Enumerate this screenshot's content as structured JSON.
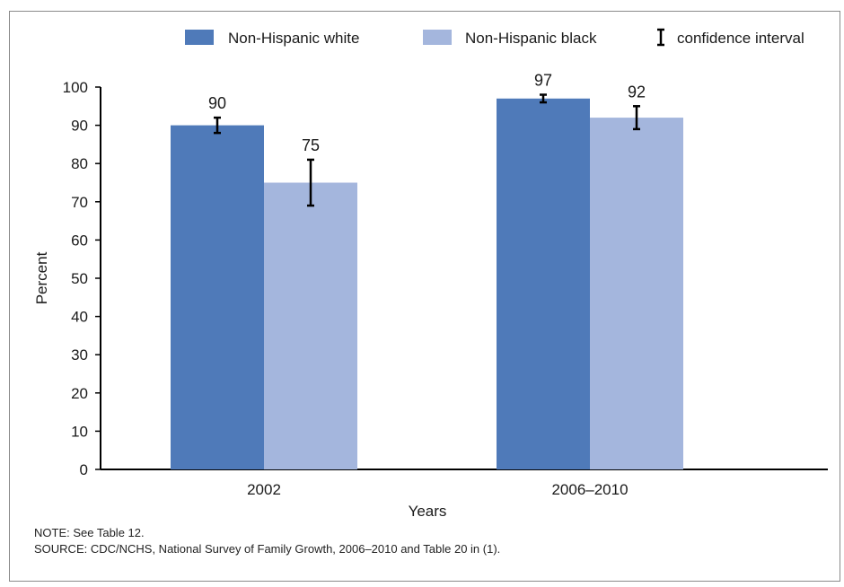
{
  "chart_data": {
    "type": "bar",
    "categories": [
      "2002",
      "2006–2010"
    ],
    "series": [
      {
        "name": "Non-Hispanic white",
        "values": [
          90,
          97
        ],
        "ci_low": [
          88,
          96
        ],
        "ci_high": [
          92,
          98
        ],
        "color": "#4f7ab9"
      },
      {
        "name": "Non-Hispanic black",
        "values": [
          75,
          92
        ],
        "ci_low": [
          69,
          89
        ],
        "ci_high": [
          81,
          95
        ],
        "color": "#a4b6dd"
      }
    ],
    "legend_ci_label": "confidence interval",
    "xlabel": "Years",
    "ylabel": "Percent",
    "ylim": [
      0,
      100
    ],
    "yticks": [
      0,
      10,
      20,
      30,
      40,
      50,
      60,
      70,
      80,
      90,
      100
    ],
    "data_labels": true,
    "grid": false,
    "legend_position": "top-right"
  },
  "notes": {
    "note": "NOTE: See Table 12.",
    "source": "SOURCE: CDC/NCHS, National Survey of Family Growth, 2006–2010 and Table 20 in (1)."
  }
}
